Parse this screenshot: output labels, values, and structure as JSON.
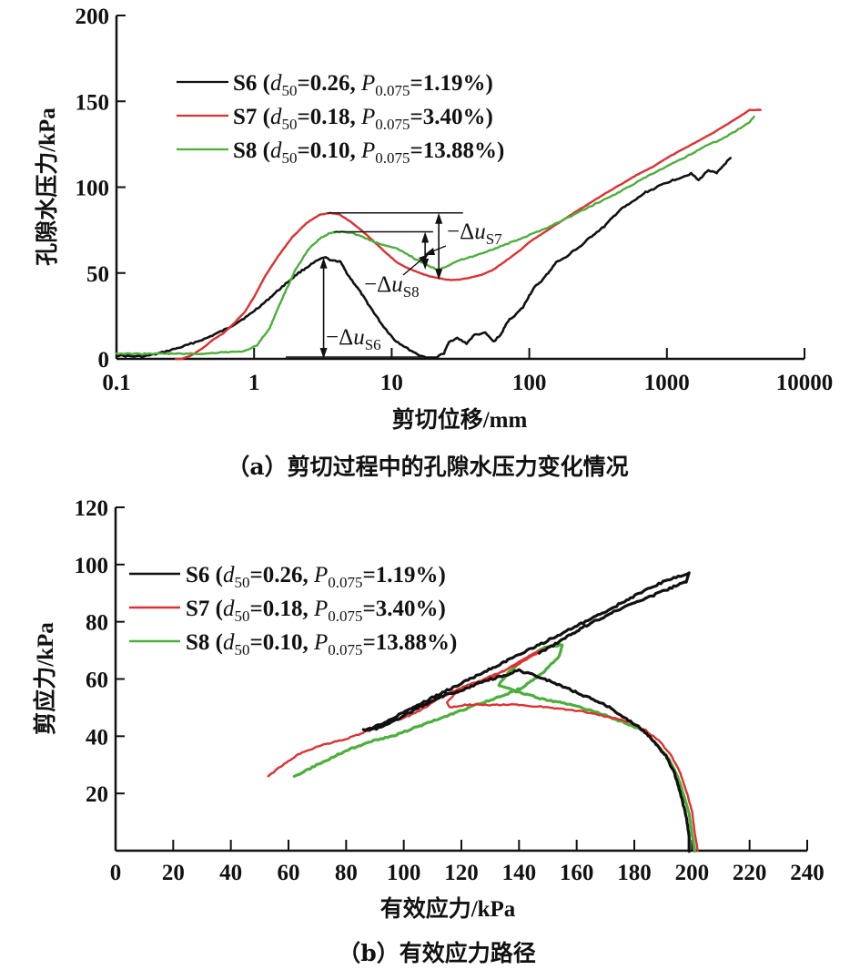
{
  "chart_data": [
    {
      "id": "a",
      "type": "line",
      "caption": "（a）剪切过程中的孔隙水压力变化情况",
      "xlabel": "剪切位移/mm",
      "ylabel": "孔隙水压力/kPa",
      "xscale": "log",
      "xlim": [
        0.1,
        10000
      ],
      "ylim": [
        0,
        200
      ],
      "xticks": [
        0.1,
        1,
        10,
        100,
        1000,
        10000
      ],
      "xtick_labels": [
        "0.1",
        "1",
        "10",
        "100",
        "1000",
        "10000"
      ],
      "yticks": [
        0,
        50,
        100,
        150,
        200
      ],
      "ytick_labels": [
        "0",
        "50",
        "100",
        "150",
        "200"
      ],
      "grid": false,
      "legend_position": "upper-left",
      "series": [
        {
          "name": "S6",
          "label": {
            "sample": "S6",
            "d50": "0.26",
            "p0075": "1.19%"
          },
          "color": "#111111",
          "x": [
            0.1,
            0.13,
            0.16,
            0.2,
            0.3,
            0.45,
            0.65,
            0.9,
            1.2,
            1.6,
            2.1,
            2.6,
            3.0,
            3.3,
            3.7,
            4.2,
            4.8,
            5.8,
            7,
            8.5,
            10.5,
            13,
            16,
            18.5,
            20,
            21,
            22,
            24,
            26,
            30,
            35,
            40,
            48,
            55,
            62,
            70,
            80,
            90,
            100,
            110,
            125,
            140,
            160,
            185,
            210,
            240,
            270,
            300,
            350,
            400,
            460,
            530,
            600,
            700,
            800,
            950,
            1100,
            1300,
            1500,
            1700,
            2000,
            2300,
            2600,
            2900
          ],
          "y": [
            2,
            1.5,
            1.5,
            3,
            7,
            12,
            18,
            25,
            33,
            42,
            50,
            55,
            58,
            59,
            57,
            57,
            49,
            40,
            30,
            20,
            11,
            6,
            2,
            0.5,
            0,
            0.5,
            2,
            3,
            10,
            12,
            9,
            14,
            15,
            10,
            14,
            22,
            26,
            30,
            37,
            42,
            46,
            51,
            57,
            59,
            63,
            66,
            70,
            73,
            77,
            82,
            87,
            90,
            93,
            97,
            99,
            102,
            104,
            106,
            108,
            104,
            110,
            108,
            113,
            117
          ]
        },
        {
          "name": "S7",
          "label": {
            "sample": "S7",
            "d50": "0.18",
            "p0075": "3.40%"
          },
          "color": "#e03030",
          "x": [
            0.27,
            0.3,
            0.35,
            0.42,
            0.5,
            0.6,
            0.7,
            0.85,
            1.0,
            1.2,
            1.5,
            1.9,
            2.4,
            3.0,
            3.6,
            4.2,
            5,
            6,
            7.5,
            9,
            11,
            13,
            16,
            19,
            22,
            26,
            30,
            36,
            45,
            55,
            70,
            85,
            100,
            130,
            170,
            220,
            280,
            350,
            450,
            600,
            800,
            1000,
            1300,
            1700,
            2200,
            2800,
            3500,
            4000,
            4800
          ],
          "y": [
            0,
            0,
            2,
            6,
            11,
            15,
            20,
            27,
            36,
            48,
            60,
            71,
            79,
            84,
            85,
            84,
            80,
            75,
            68,
            62,
            56,
            53,
            50,
            48,
            47,
            46,
            46,
            47,
            49,
            52,
            58,
            63,
            68,
            74,
            80,
            86,
            91,
            96,
            101,
            107,
            112,
            117,
            122,
            127,
            132,
            137,
            142,
            145,
            145
          ]
        },
        {
          "name": "S8",
          "label": {
            "sample": "S8",
            "d50": "0.10",
            "p0075": "13.88%"
          },
          "color": "#4caf3a",
          "x": [
            0.1,
            0.15,
            0.2,
            0.3,
            0.45,
            0.6,
            0.75,
            0.9,
            1.05,
            1.3,
            1.6,
            2.0,
            2.5,
            3.0,
            3.5,
            4.0,
            4.6,
            5.3,
            6.2,
            7.5,
            9,
            11,
            13,
            15,
            17.5,
            20,
            22,
            25,
            30,
            40,
            55,
            75,
            100,
            140,
            200,
            280,
            400,
            550,
            750,
            1000,
            1400,
            1900,
            2500,
            3200,
            4000,
            4300
          ],
          "y": [
            3,
            3,
            3,
            3,
            3,
            4,
            4,
            5,
            8,
            18,
            35,
            52,
            64,
            70,
            73,
            74,
            74,
            73,
            71,
            68,
            66,
            64,
            61,
            58,
            55,
            53,
            52,
            54,
            57,
            60,
            64,
            68,
            72,
            77,
            83,
            89,
            95,
            101,
            107,
            112,
            118,
            124,
            128,
            133,
            138,
            141
          ]
        }
      ],
      "annotations": [
        {
          "label": "−Δu",
          "subscript": "S6",
          "y_from": 0,
          "y_to": 59,
          "x": 3.2
        },
        {
          "label": "−Δu",
          "subscript": "S7",
          "y_from": 46,
          "y_to": 85,
          "x": 22
        },
        {
          "label": "−Δu",
          "subscript": "S8",
          "y_from": 52,
          "y_to": 74,
          "x": 17.5
        }
      ]
    },
    {
      "id": "b",
      "type": "line",
      "caption": "（b）有效应力路径",
      "xlabel": "有效应力/kPa",
      "ylabel": "剪应力/kPa",
      "xlim": [
        0,
        240
      ],
      "ylim": [
        0,
        120
      ],
      "xticks": [
        0,
        20,
        40,
        60,
        80,
        100,
        120,
        140,
        160,
        180,
        200,
        220,
        240
      ],
      "xtick_labels": [
        "0",
        "20",
        "40",
        "60",
        "80",
        "100",
        "120",
        "140",
        "160",
        "180",
        "200",
        "220",
        "240"
      ],
      "yticks": [
        20,
        40,
        60,
        80,
        100,
        120
      ],
      "ytick_labels": [
        "20",
        "40",
        "60",
        "80",
        "100",
        "120"
      ],
      "grid": false,
      "legend_position": "upper-left",
      "series": [
        {
          "name": "S6",
          "label": {
            "sample": "S6",
            "d50": "0.26",
            "p0075": "1.19%"
          },
          "color": "#111111",
          "x": [
            199,
            199,
            198,
            196,
            194,
            191,
            187,
            182,
            176,
            170,
            163,
            156,
            149,
            143,
            140,
            134,
            127,
            120,
            113,
            105,
            98,
            92,
            86,
            92,
            99,
            107,
            115,
            123,
            131,
            139,
            147,
            155,
            163,
            171,
            178,
            184,
            190,
            196,
            199,
            198,
            193,
            186,
            178,
            170,
            162,
            154,
            147
          ],
          "y": [
            0,
            5,
            12,
            20,
            27,
            33,
            38,
            43,
            47,
            51,
            54,
            57,
            60,
            62,
            63,
            61,
            59,
            56,
            54,
            50,
            46,
            43,
            42,
            44,
            48,
            52,
            56,
            60,
            64,
            68,
            72,
            76,
            80,
            84,
            88,
            91,
            94,
            96,
            97,
            94,
            92,
            89,
            86,
            82,
            78,
            73,
            69
          ]
        },
        {
          "name": "S7",
          "label": {
            "sample": "S7",
            "d50": "0.18",
            "p0075": "3.40%"
          },
          "color": "#e03030",
          "x": [
            202,
            201,
            200,
            198,
            196,
            193,
            189,
            184,
            178,
            170,
            160,
            150,
            140,
            130,
            122,
            116,
            115,
            118,
            125,
            133,
            141,
            148,
            152,
            150,
            145,
            140,
            135,
            128,
            120,
            112,
            104,
            96,
            88,
            80,
            72,
            64,
            58,
            53
          ],
          "y": [
            0,
            6,
            14,
            21,
            27,
            33,
            38,
            42,
            45,
            47,
            49,
            50,
            51,
            51,
            51,
            50,
            52,
            55,
            58,
            62,
            66,
            70,
            72,
            71,
            69,
            66,
            63,
            60,
            57,
            53,
            48,
            45,
            42,
            39,
            37,
            34,
            30,
            26
          ]
        },
        {
          "name": "S8",
          "label": {
            "sample": "S8",
            "d50": "0.10",
            "p0075": "13.88%"
          },
          "color": "#4caf3a",
          "x": [
            201,
            200,
            199,
            197,
            195,
            192,
            188,
            183,
            176,
            168,
            158,
            148,
            138,
            133,
            136,
            142,
            149,
            155,
            154,
            148,
            141,
            134,
            128,
            120,
            112,
            104,
            96,
            88,
            80,
            72,
            66,
            62
          ],
          "y": [
            0,
            6,
            13,
            20,
            26,
            32,
            37,
            42,
            45,
            48,
            51,
            53,
            56,
            58,
            62,
            67,
            71,
            72,
            68,
            62,
            57,
            54,
            52,
            49,
            46,
            43,
            40,
            38,
            35,
            31,
            28,
            26
          ]
        }
      ]
    }
  ]
}
